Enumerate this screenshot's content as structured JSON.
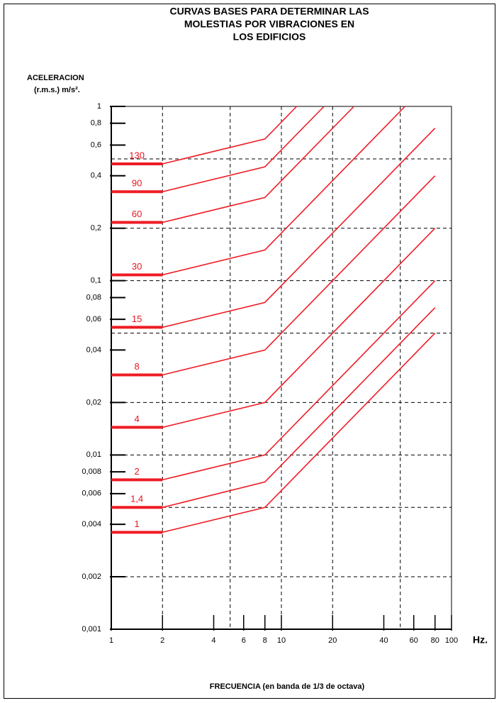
{
  "chart_data": {
    "type": "line",
    "title_lines": [
      "CURVAS BASES PARA DETERMINAR LAS",
      "MOLESTIAS POR VIBRACIONES EN",
      "LOS EDIFICIOS"
    ],
    "y_label_lines": [
      "ACELERACION",
      "(r.m.s.) m/s²."
    ],
    "x_label": "FRECUENCIA (en banda de 1/3 de octava)",
    "x_unit": "Hz.",
    "log_x": true,
    "log_y": true,
    "color": "#ee1c25",
    "xlim": [
      1,
      100
    ],
    "ylim": [
      0.001,
      1
    ],
    "xticks": [
      1,
      2,
      4,
      6,
      8,
      10,
      20,
      40,
      60,
      80,
      100
    ],
    "yticks": [
      1,
      {
        "value": 0.8,
        "label": "0,8"
      },
      {
        "value": 0.6,
        "label": "0,6"
      },
      {
        "value": 0.4,
        "label": "0,4"
      },
      {
        "value": 0.2,
        "label": "0,2"
      },
      {
        "value": 0.1,
        "label": "0,1"
      },
      {
        "value": 0.08,
        "label": "0,08"
      },
      {
        "value": 0.06,
        "label": "0,06"
      },
      {
        "value": 0.04,
        "label": "0,04"
      },
      {
        "value": 0.02,
        "label": "0,02"
      },
      {
        "value": 0.01,
        "label": "0,01"
      },
      {
        "value": 0.008,
        "label": "0,008"
      },
      {
        "value": 0.006,
        "label": "0,006"
      },
      {
        "value": 0.004,
        "label": "0,004"
      },
      {
        "value": 0.002,
        "label": "0,002"
      },
      {
        "value": 0.001,
        "label": "0,001"
      }
    ],
    "xgrid": [
      2,
      5,
      10,
      20,
      50
    ],
    "ygrid": [
      0.5,
      0.2,
      0.1,
      0.05,
      0.02,
      0.01,
      0.005,
      0.002
    ],
    "series": [
      {
        "name": "1",
        "x": [
          1,
          2,
          8,
          80
        ],
        "values": [
          0.0036,
          0.0036,
          0.005,
          0.05
        ]
      },
      {
        "name": "1,4",
        "x": [
          1,
          2,
          8,
          80
        ],
        "values": [
          0.005,
          0.005,
          0.007,
          0.07
        ]
      },
      {
        "name": "2",
        "x": [
          1,
          2,
          8,
          80
        ],
        "values": [
          0.0072,
          0.0072,
          0.01,
          0.1
        ]
      },
      {
        "name": "4",
        "x": [
          1,
          2,
          8,
          80
        ],
        "values": [
          0.0144,
          0.0144,
          0.02,
          0.2
        ]
      },
      {
        "name": "8",
        "x": [
          1,
          2,
          8,
          80
        ],
        "values": [
          0.0288,
          0.0288,
          0.04,
          0.4
        ]
      },
      {
        "name": "15",
        "x": [
          1,
          2,
          8,
          80
        ],
        "values": [
          0.054,
          0.054,
          0.075,
          0.75
        ]
      },
      {
        "name": "30",
        "x": [
          1,
          2,
          8,
          53.3
        ],
        "values": [
          0.108,
          0.108,
          0.15,
          1
        ]
      },
      {
        "name": "60",
        "x": [
          1,
          2,
          8,
          26.7
        ],
        "values": [
          0.216,
          0.216,
          0.3,
          1
        ]
      },
      {
        "name": "90",
        "x": [
          1,
          2,
          8,
          17.8
        ],
        "values": [
          0.324,
          0.324,
          0.45,
          1
        ]
      },
      {
        "name": "130",
        "x": [
          1,
          2,
          8,
          12.3
        ],
        "values": [
          0.468,
          0.468,
          0.65,
          1
        ]
      }
    ]
  }
}
